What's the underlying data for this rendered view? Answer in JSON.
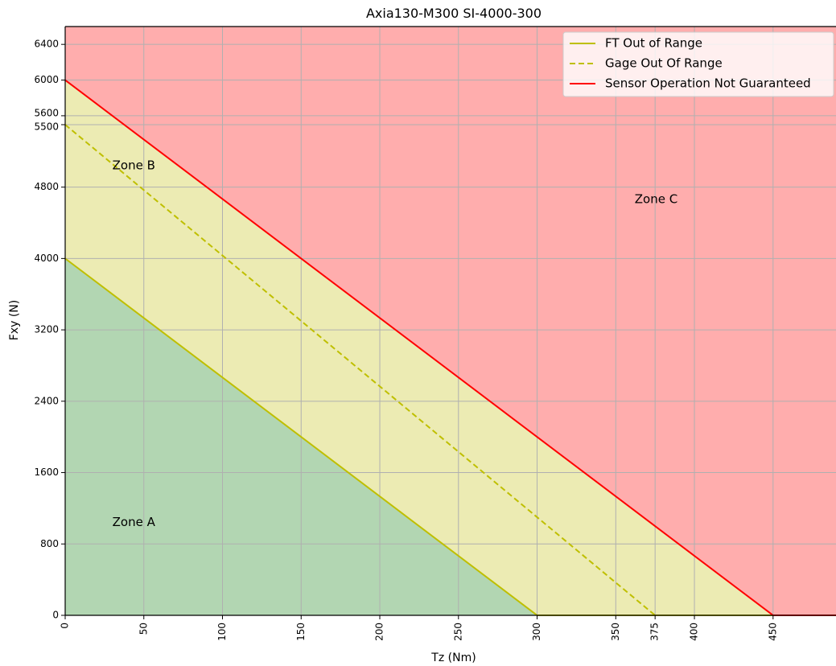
{
  "colors": {
    "zone_a_fill": "#b2d6b2",
    "zone_b_fill": "#ecebb3",
    "zone_c_fill": "#ffadad",
    "ft_line": "#bfbf00",
    "gage_line": "#bfbf00",
    "sensor_line": "#ff0000",
    "grid": "#b0b0b0"
  },
  "chart_data": {
    "type": "line",
    "title": "Axia130-M300 SI-4000-300",
    "xlabel": "Tz (Nm)",
    "ylabel": "Fxy (N)",
    "xlim": [
      0,
      490
    ],
    "ylim": [
      0,
      6600
    ],
    "grid": true,
    "legend_position": "top-right",
    "xticks": [
      0,
      50,
      100,
      150,
      200,
      250,
      300,
      350,
      375,
      400,
      450
    ],
    "yticks": [
      0,
      800,
      1600,
      2400,
      3200,
      4000,
      4800,
      5500,
      5600,
      6000,
      6400
    ],
    "series": [
      {
        "name": "FT Out of Range",
        "style": "solid",
        "color": "#bfbf00",
        "x": [
          0,
          300,
          450
        ],
        "y": [
          4000,
          0,
          0
        ]
      },
      {
        "name": "Gage Out Of Range",
        "style": "dashed",
        "color": "#bfbf00",
        "x": [
          0,
          375
        ],
        "y": [
          5500,
          0
        ]
      },
      {
        "name": "Sensor Operation Not Guaranteed",
        "style": "solid",
        "color": "#ff0000",
        "x": [
          0,
          450,
          490
        ],
        "y": [
          6000,
          0,
          0
        ]
      }
    ],
    "zones": [
      {
        "label": "Zone A",
        "label_at": [
          30,
          1000
        ]
      },
      {
        "label": "Zone B",
        "label_at": [
          30,
          5000
        ]
      },
      {
        "label": "Zone C",
        "label_at": [
          362,
          4620
        ]
      }
    ]
  }
}
